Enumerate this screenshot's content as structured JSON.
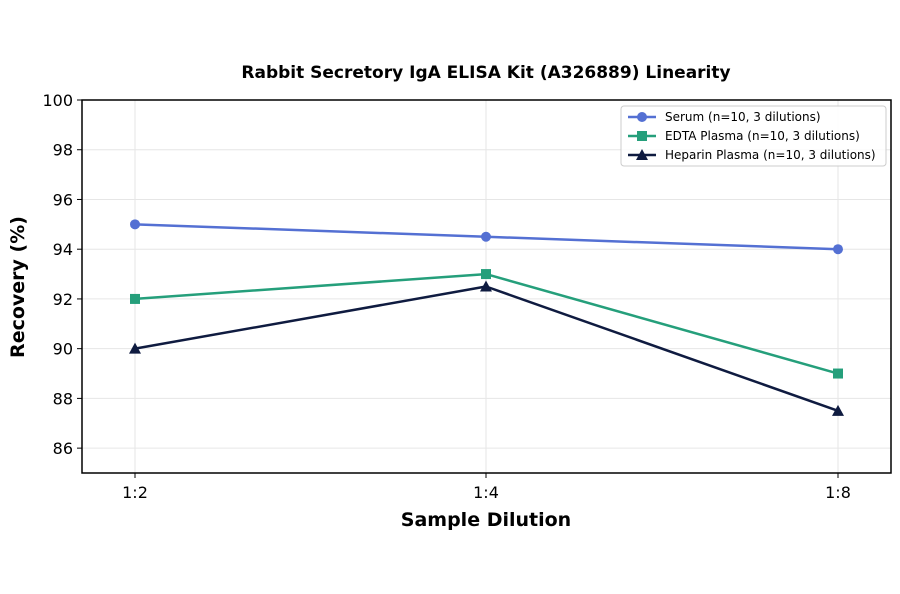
{
  "chart_data": {
    "type": "line",
    "title": "Rabbit Secretory IgA ELISA Kit (A326889) Linearity",
    "xlabel": "Sample Dilution",
    "ylabel": "Recovery (%)",
    "categories": [
      "1:2",
      "1:4",
      "1:8"
    ],
    "ylim": [
      85,
      100
    ],
    "yticks": [
      86,
      88,
      90,
      92,
      94,
      96,
      98,
      100
    ],
    "grid": true,
    "legend_position": "top-right",
    "series": [
      {
        "name": "Serum (n=10, 3 dilutions)",
        "values": [
          95.0,
          94.5,
          94.0
        ],
        "color": "#5470d3",
        "marker": "circle"
      },
      {
        "name": "EDTA Plasma (n=10, 3 dilutions)",
        "values": [
          92.0,
          93.0,
          89.0
        ],
        "color": "#259f7b",
        "marker": "square"
      },
      {
        "name": "Heparin Plasma (n=10, 3 dilutions)",
        "values": [
          90.0,
          92.5,
          87.5
        ],
        "color": "#0f1b40",
        "marker": "triangle"
      }
    ]
  }
}
